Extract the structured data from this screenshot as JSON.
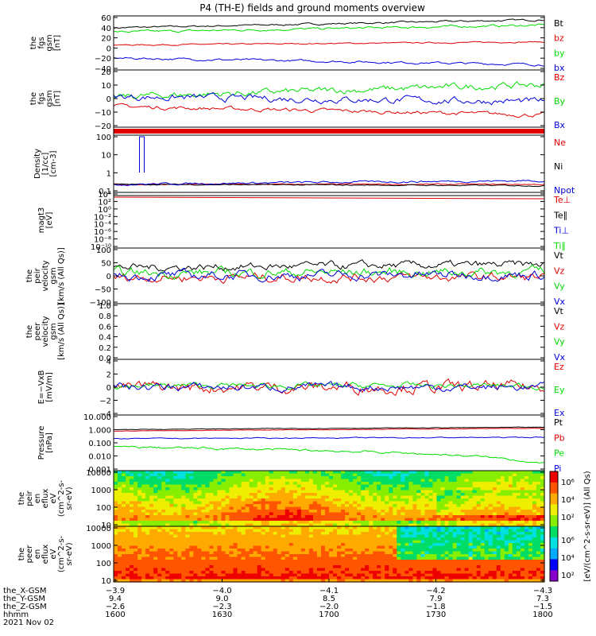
{
  "title": "P4 (TH-E) fields and ground moments overview",
  "colors": {
    "black": "#000000",
    "red": "#e00000",
    "green": "#00dd00",
    "blue": "#0000dd"
  },
  "chart_data": [
    {
      "type": "line",
      "panel": "fgs_gsm",
      "ylabel": [
        "the",
        "fgs",
        "gsm",
        "[nT]"
      ],
      "ylim": [
        -40,
        60
      ],
      "yticks": [
        "60",
        "40",
        "20",
        "0",
        "−20",
        "−40"
      ],
      "series": [
        {
          "name": "Bt",
          "color": "black",
          "start": 38,
          "end": 53,
          "noise": 1.2
        },
        {
          "name": "bz",
          "color": "red",
          "start": 6,
          "end": 12,
          "noise": 0.8
        },
        {
          "name": "by",
          "color": "green",
          "start": 30,
          "end": 43,
          "noise": 1.5
        },
        {
          "name": "bx",
          "color": "blue",
          "start": -18,
          "end": -30,
          "noise": 1.5
        }
      ]
    },
    {
      "type": "line",
      "panel": "fgs_dsl",
      "ylabel": [
        "the",
        "fgs",
        "gsm",
        "[nT]"
      ],
      "ylim": [
        -25,
        22
      ],
      "yticks": [
        "20",
        "10",
        "0",
        "−10",
        "−20"
      ],
      "series": [
        {
          "name": "Bz",
          "color": "red",
          "start": -8,
          "end": -15,
          "noise": 1.2
        },
        {
          "name": "By",
          "color": "green",
          "start": 0,
          "end": 10,
          "noise": 2
        },
        {
          "name": "Bx",
          "color": "blue",
          "start": 0,
          "end": -4,
          "noise": 2
        }
      ]
    },
    {
      "type": "line",
      "panel": "density",
      "ylabel": [
        "Density",
        "[1/cc]",
        "[cm-3]"
      ],
      "ylim_log": [
        -1,
        2.4
      ],
      "yticks": [
        "100",
        "10",
        "1",
        "0.1"
      ],
      "series": [
        {
          "name": "Ne",
          "color": "red",
          "start": 0.3,
          "end": 0.3,
          "noise": 0.08
        },
        {
          "name": "Ni",
          "color": "black",
          "start": 0.3,
          "end": 0.25,
          "noise": 0.08
        },
        {
          "name": "Npot",
          "color": "blue",
          "start": 0.3,
          "end": 0.5,
          "noise": 0.15
        }
      ]
    },
    {
      "type": "line",
      "panel": "temperature",
      "ylabel": [
        "magt3",
        "[eV]"
      ],
      "ylim_log": [
        -1,
        4.5
      ],
      "yticks": [
        "10⁴",
        "10²",
        "10⁰",
        "10⁻²",
        "10⁻⁴",
        "10⁻⁶",
        "10⁻⁸",
        "10⁻¹⁰"
      ],
      "series": [
        {
          "name": "Te⊥",
          "color": "red"
        },
        {
          "name": "Te∥",
          "color": "black"
        },
        {
          "name": "Ti⊥",
          "color": "blue"
        },
        {
          "name": "Ti∥",
          "color": "green"
        }
      ]
    },
    {
      "type": "line",
      "panel": "peir_velocity",
      "ylabel": [
        "the",
        "peir",
        "velocity",
        "gsm",
        "[km/s (All Qs)]"
      ],
      "ylim": [
        -100,
        100
      ],
      "yticks": [
        "100",
        "50",
        "0",
        "−50",
        "−100"
      ],
      "series": [
        {
          "name": "Vt",
          "color": "black",
          "start": 30,
          "end": 40,
          "noise": 10
        },
        {
          "name": "Vz",
          "color": "red",
          "start": -5,
          "end": -5,
          "noise": 12
        },
        {
          "name": "Vy",
          "color": "green",
          "start": 10,
          "end": 15,
          "noise": 12
        },
        {
          "name": "Vx",
          "color": "blue",
          "start": 0,
          "end": 5,
          "noise": 12
        }
      ]
    },
    {
      "type": "line",
      "panel": "peer_velocity",
      "ylabel": [
        "the",
        "peer",
        "velocity",
        "gsm",
        "[km/s (All Qs)]"
      ],
      "ylim": [
        0,
        1
      ],
      "yticks": [
        "1.0",
        "0.8",
        "0.6",
        "0.4",
        "0.2",
        "0.0"
      ],
      "series": [
        {
          "name": "Vt",
          "color": "black"
        },
        {
          "name": "Vz",
          "color": "red"
        },
        {
          "name": "Vy",
          "color": "green"
        },
        {
          "name": "Vx",
          "color": "blue"
        }
      ]
    },
    {
      "type": "line",
      "panel": "efield",
      "ylabel": [
        "E=−VxB",
        "[mV/m]"
      ],
      "ylim": [
        -4,
        4
      ],
      "yticks": [
        "4",
        "2",
        "0",
        "−2",
        "−4"
      ],
      "series": [
        {
          "name": "Ez",
          "color": "red",
          "start": 0,
          "end": 0,
          "noise": 0.6
        },
        {
          "name": "Ey",
          "color": "green",
          "start": 0.2,
          "end": 0.2,
          "noise": 0.3
        },
        {
          "name": "Ex",
          "color": "blue",
          "start": 0,
          "end": 0,
          "noise": 0.4
        }
      ]
    },
    {
      "type": "line",
      "panel": "pressure",
      "ylabel": [
        "Pressure",
        "[nPa]"
      ],
      "ylim_log": [
        -3,
        1
      ],
      "yticks": [
        "10.000",
        "1.000",
        "0.100",
        "0.010",
        "0.001"
      ],
      "series": [
        {
          "name": "Pt",
          "color": "black",
          "start": 0.9,
          "end": 1.3,
          "noise": 0.05
        },
        {
          "name": "Pb",
          "color": "red",
          "start": 0.7,
          "end": 1.1,
          "noise": 0.04
        },
        {
          "name": "Pe",
          "color": "green",
          "start": 0.05,
          "end": 0.003,
          "noise": 0.2
        },
        {
          "name": "Pi",
          "color": "blue",
          "start": 0.2,
          "end": 0.25,
          "noise": 0.08
        }
      ]
    },
    {
      "type": "heatmap",
      "panel": "peir_spectrum",
      "ylabel": [
        "the",
        "peir",
        "en",
        "eflux",
        "eV",
        "(cm^2-s-",
        "sr-eV)"
      ],
      "ylim_log": [
        0.7,
        4.3
      ],
      "yticks": [
        "10000",
        "1000",
        "100",
        "10"
      ]
    },
    {
      "type": "heatmap",
      "panel": "peer_spectrum",
      "ylabel": [
        "the",
        "peer",
        "en",
        "eflux",
        "eV",
        "(cm^2-s-",
        "sr-eV)"
      ],
      "ylim_log": [
        0.7,
        4.3
      ],
      "yticks": [
        "10000",
        "1000",
        "100",
        "10"
      ]
    }
  ],
  "legends_labels": {
    "p1": [
      "Bt",
      "bz",
      "by",
      "bx"
    ],
    "p2": [
      "Bz",
      "By",
      "Bx"
    ],
    "p4": [
      "Ne",
      "Ni",
      "Npot"
    ],
    "p5": [
      "Te⊥",
      "Te∥",
      "Ti⊥",
      "Ti∥"
    ],
    "p6": [
      "Vt",
      "Vz",
      "Vy",
      "Vx"
    ],
    "p7": [
      "Vt",
      "Vz",
      "Vy",
      "Vx"
    ],
    "p8": [
      "Ez",
      "Ey",
      "Ex"
    ],
    "p9": [
      "Pt",
      "Pb",
      "Pe",
      "Pi"
    ]
  },
  "colorbar": {
    "ticks": [
      "10⁶",
      "10⁴",
      "10²"
    ],
    "ticks2": [
      "10⁶",
      "10⁴",
      "10²"
    ],
    "label": "[eV/(cm^2-s-sr-eV)] (All Qs)"
  },
  "xaxis": {
    "rows": [
      {
        "label": "the_X-GSM",
        "values": [
          "−3.9",
          "−4.0",
          "−4.1",
          "−4.2",
          "−4.3"
        ]
      },
      {
        "label": "the_Y-GSM",
        "values": [
          "9.4",
          "9.0",
          "8.5",
          "7.9",
          "7.3"
        ]
      },
      {
        "label": "the_Z-GSM",
        "values": [
          "−2.6",
          "−2.3",
          "−2.0",
          "−1.8",
          "−1.5"
        ]
      },
      {
        "label": "hhmm",
        "values": [
          "1600",
          "1630",
          "1700",
          "1730",
          "1800"
        ]
      }
    ],
    "date": "2021 Nov 02"
  }
}
